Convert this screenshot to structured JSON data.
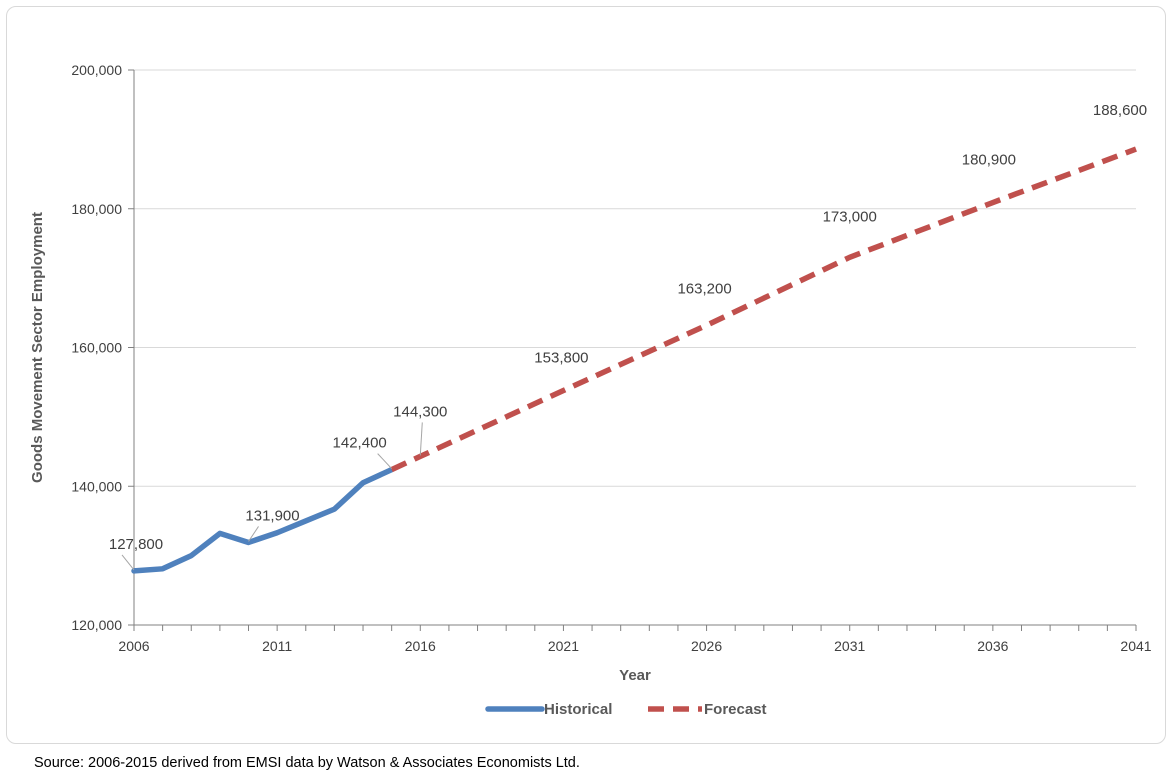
{
  "chart_data": {
    "type": "line",
    "xlabel": "Year",
    "ylabel": "Goods Movement Sector Employment",
    "xlim": [
      2006,
      2041
    ],
    "ylim": [
      120000,
      200000
    ],
    "x_ticks": [
      "2006",
      "2011",
      "2016",
      "2021",
      "2026",
      "2031",
      "2036",
      "2041"
    ],
    "y_ticks": [
      "120,000",
      "140,000",
      "160,000",
      "180,000",
      "200,000"
    ],
    "grid": "horizontal",
    "legend": "bottom",
    "series": [
      {
        "name": "Historical",
        "style": "solid",
        "color": "#4f81bd",
        "x": [
          2006,
          2007,
          2008,
          2009,
          2010,
          2011,
          2012,
          2013,
          2014,
          2015
        ],
        "y": [
          127800,
          128100,
          130000,
          133200,
          131900,
          133300,
          135000,
          136700,
          140500,
          142400
        ]
      },
      {
        "name": "Forecast",
        "style": "dashed",
        "color": "#c0504d",
        "x": [
          2015,
          2016,
          2021,
          2026,
          2031,
          2036,
          2041
        ],
        "y": [
          142400,
          144300,
          153800,
          163200,
          173000,
          180900,
          188600
        ]
      }
    ],
    "annotations": [
      {
        "x": 2006,
        "y": 127800,
        "text": "127,800",
        "leader": true
      },
      {
        "x": 2010,
        "y": 131900,
        "text": "131,900",
        "leader": true
      },
      {
        "x": 2015,
        "y": 142400,
        "text": "142,400",
        "leader": true
      },
      {
        "x": 2016,
        "y": 144300,
        "text": "144,300",
        "leader": true
      },
      {
        "x": 2021,
        "y": 153800,
        "text": "153,800",
        "leader": false
      },
      {
        "x": 2026,
        "y": 163200,
        "text": "163,200",
        "leader": false
      },
      {
        "x": 2031,
        "y": 173000,
        "text": "173,000",
        "leader": false
      },
      {
        "x": 2036,
        "y": 180900,
        "text": "180,900",
        "leader": false
      },
      {
        "x": 2041,
        "y": 188600,
        "text": "188,600",
        "leader": false
      }
    ]
  },
  "source_note": "Source: 2006-2015 derived from EMSI data by Watson & Associates Economists Ltd."
}
